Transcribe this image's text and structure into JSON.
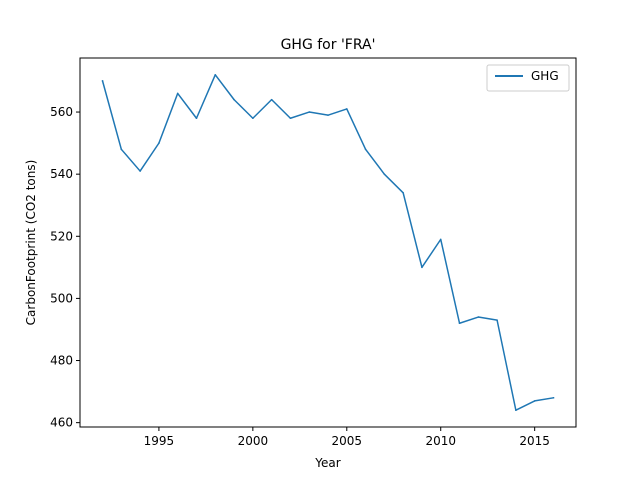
{
  "chart_data": {
    "type": "line",
    "title": "GHG for 'FRA'",
    "xlabel": "Year",
    "ylabel": "CarbonFootprint (CO2 tons)",
    "xlim": [
      1990.8,
      2017.2
    ],
    "ylim": [
      458.6,
      577.4
    ],
    "xticks": [
      1995,
      2000,
      2005,
      2010,
      2015
    ],
    "yticks": [
      460,
      480,
      500,
      520,
      540,
      560
    ],
    "legend": {
      "position": "top-right"
    },
    "grid": false,
    "series": [
      {
        "name": "GHG",
        "color": "#1f77b4",
        "x": [
          1992,
          1993,
          1994,
          1995,
          1996,
          1997,
          1998,
          1999,
          2000,
          2001,
          2002,
          2003,
          2004,
          2005,
          2006,
          2007,
          2008,
          2009,
          2010,
          2011,
          2012,
          2013,
          2014,
          2015,
          2016
        ],
        "y": [
          570,
          548,
          541,
          550,
          566,
          558,
          572,
          564,
          558,
          564,
          558,
          560,
          559,
          561,
          548,
          540,
          534,
          510,
          519,
          492,
          494,
          493,
          464,
          467,
          468
        ]
      }
    ]
  }
}
